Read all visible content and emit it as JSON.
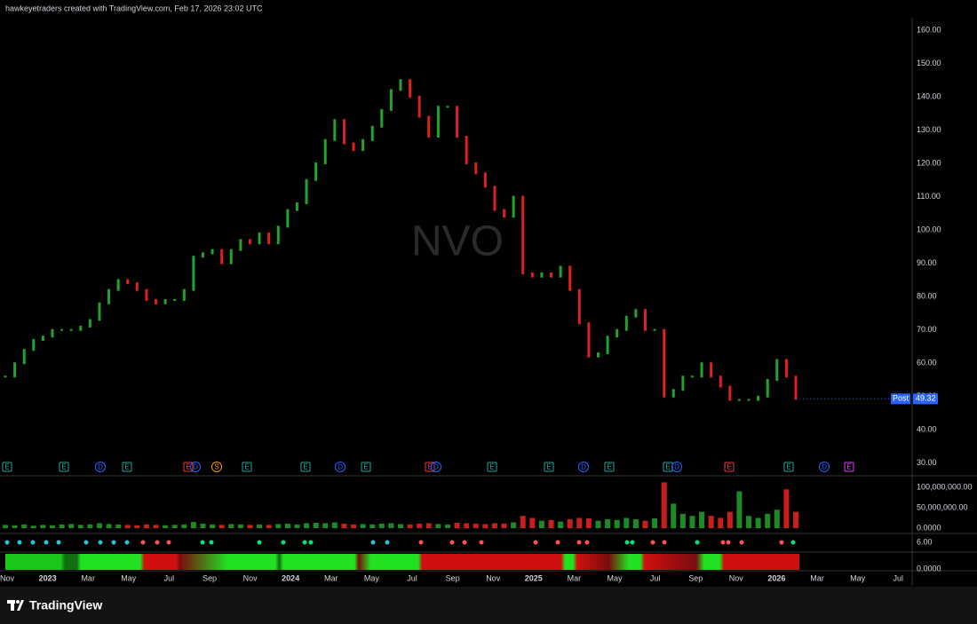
{
  "header": "hawkeyetraders created with TradingView.com, Feb 17, 2026 23:02 UTC",
  "brand": "TradingView",
  "chart_data": [
    {
      "type": "line",
      "watermark": "NVO",
      "last_label": "Post",
      "values": [
        56,
        60,
        64,
        67,
        68,
        70,
        70,
        70,
        71,
        73,
        78,
        82,
        85,
        84,
        82,
        79,
        78,
        79,
        79,
        82,
        92,
        93,
        94,
        90,
        94,
        97,
        96,
        99,
        96,
        101,
        106,
        108,
        115,
        120,
        127,
        133,
        126,
        124,
        127,
        131,
        136,
        142,
        145,
        140,
        134,
        128,
        137,
        137,
        128,
        120,
        117,
        113,
        106,
        104,
        110,
        87,
        86,
        87,
        86,
        89,
        82,
        72,
        62,
        63,
        68,
        70,
        74,
        76,
        70,
        70,
        50,
        52,
        56,
        56,
        60,
        56,
        53,
        49,
        49,
        49,
        50,
        55,
        61,
        56,
        49.32
      ],
      "up_color": "#22a32a",
      "down_color": "#e0201e",
      "last_color": "#2962ff",
      "ylim": [
        26.5,
        163.7
      ],
      "yticks": [
        {
          "value": 30,
          "label": "30.00"
        },
        {
          "value": 40,
          "label": "40.00"
        },
        {
          "value": 50,
          "label": "50.00"
        },
        {
          "value": 60,
          "label": "60.00"
        },
        {
          "value": 70,
          "label": "70.00"
        },
        {
          "value": 80,
          "label": "80.00"
        },
        {
          "value": 90,
          "label": "90.00"
        },
        {
          "value": 100,
          "label": "100.00"
        },
        {
          "value": 110,
          "label": "110.00"
        },
        {
          "value": 120,
          "label": "120.00"
        },
        {
          "value": 130,
          "label": "130.00"
        },
        {
          "value": 140,
          "label": "140.00"
        },
        {
          "value": 150,
          "label": "150.00"
        },
        {
          "value": 160,
          "label": "160.00"
        }
      ],
      "xlabels": [
        "Nov",
        "2023",
        "Mar",
        "May",
        "Jul",
        "Sep",
        "Nov",
        "2024",
        "Mar",
        "May",
        "Jul",
        "Sep",
        "Nov",
        "2025",
        "Mar",
        "May",
        "Jul",
        "Sep",
        "Nov",
        "2026",
        "Mar",
        "May",
        "Jul"
      ],
      "events": [
        {
          "label": "E",
          "color": "#26a69a"
        },
        {
          "label": "E",
          "color": "#26a69a"
        },
        {
          "label": "D",
          "color": "#2962ff"
        },
        {
          "label": "E",
          "color": "#26a69a"
        },
        {
          "label": "E",
          "color": "#f23645"
        },
        {
          "label": "D",
          "color": "#2962ff"
        },
        {
          "label": "S",
          "color": "#ff9800"
        },
        {
          "label": "E",
          "color": "#26a69a"
        },
        {
          "label": "E",
          "color": "#26a69a"
        },
        {
          "label": "D",
          "color": "#2962ff"
        },
        {
          "label": "E",
          "color": "#26a69a"
        },
        {
          "label": "E",
          "color": "#f23645"
        },
        {
          "label": "D",
          "color": "#2962ff"
        },
        {
          "label": "E",
          "color": "#26a69a"
        },
        {
          "label": "E",
          "color": "#26a69a"
        },
        {
          "label": "D",
          "color": "#2962ff"
        },
        {
          "label": "E",
          "color": "#26a69a"
        },
        {
          "label": "E",
          "color": "#26a69a"
        },
        {
          "label": "D",
          "color": "#2962ff"
        },
        {
          "label": "E",
          "color": "#f23645"
        },
        {
          "label": "E",
          "color": "#26a69a"
        },
        {
          "label": "D",
          "color": "#2962ff"
        },
        {
          "label": "E",
          "color": "#e040fb"
        }
      ]
    },
    {
      "type": "bar",
      "values": [
        8000000,
        7000000,
        9000000,
        6000000,
        8000000,
        7000000,
        9000000,
        10000000,
        8000000,
        9000000,
        12000000,
        10000000,
        9000000,
        8000000,
        7000000,
        9000000,
        8000000,
        7000000,
        8000000,
        9000000,
        15000000,
        11000000,
        9000000,
        8000000,
        10000000,
        9000000,
        8000000,
        9000000,
        8000000,
        10000000,
        11000000,
        9000000,
        12000000,
        13000000,
        12000000,
        14000000,
        11000000,
        9000000,
        10000000,
        9000000,
        11000000,
        12000000,
        10000000,
        9000000,
        11000000,
        12000000,
        10000000,
        9000000,
        13000000,
        12000000,
        11000000,
        10000000,
        12000000,
        11000000,
        14000000,
        30000000,
        25000000,
        18000000,
        20000000,
        16000000,
        22000000,
        25000000,
        24000000,
        18000000,
        22000000,
        20000000,
        25000000,
        22000000,
        18000000,
        24000000,
        112000000,
        60000000,
        35000000,
        30000000,
        40000000,
        30000000,
        25000000,
        40000000,
        90000000,
        30000000,
        25000000,
        35000000,
        45000000,
        95000000,
        40000000
      ],
      "up_color": "#1e8a26",
      "down_color": "#c81e1e",
      "ylim": [
        0,
        126000000
      ],
      "yticks": [
        {
          "value": 0,
          "label": "0.0000"
        },
        {
          "value": 50000000,
          "label": "50,000,000.00"
        },
        {
          "value": 100000000,
          "label": "100,000,000.00"
        }
      ]
    }
  ],
  "indicator_labels": [
    "6.00",
    "0.0000"
  ]
}
